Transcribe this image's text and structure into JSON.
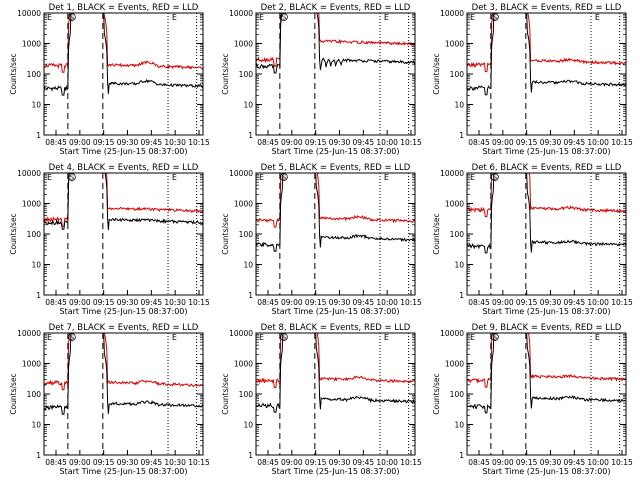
{
  "figure": {
    "start_time_label": "Start Time (25-Jun-15 08:37:00)",
    "ylabel": "Counts/sec",
    "series_colors": {
      "events": "#000000",
      "lld": "#dd0000"
    },
    "x_ticks": [
      "08:45",
      "09:00",
      "09:15",
      "09:30",
      "09:45",
      "10:00",
      "10:15"
    ],
    "x_ticks_alt": [
      "08:45",
      "09:00",
      "09:15",
      "09:30",
      "09:45",
      "10:30",
      "10:15"
    ],
    "y_ticks": [
      "1",
      "10",
      "100",
      "1000",
      "10000"
    ],
    "markers": {
      "s": "S",
      "e": "E"
    }
  },
  "chart_data": [
    {
      "type": "line",
      "title": "Det 1, BLACK = Events, RED = LLD",
      "xlim": [
        0,
        100
      ],
      "ylim": [
        1,
        10000
      ],
      "yscale": "log",
      "events_base": 34,
      "lld_base": 190,
      "events_after": 50,
      "lld_after": 200,
      "bump": 1.3,
      "variant": "a",
      "xlabel": "Start Time (25-Jun-15 08:37:00)",
      "ylabel": "Counts/sec",
      "x_ticks_alt": true
    },
    {
      "type": "line",
      "title": "Det 2, BLACK = Events, RED = LLD",
      "xlim": [
        0,
        100
      ],
      "ylim": [
        1,
        10000
      ],
      "yscale": "log",
      "events_base": 180,
      "lld_base": 300,
      "events_after": 300,
      "lld_after": 1200,
      "bump": 1.0,
      "variant": "b",
      "xlabel": "Start Time (25-Jun-15 08:37:00)",
      "ylabel": "Counts/sec",
      "x_ticks_alt": false
    },
    {
      "type": "line",
      "title": "Det 3, BLACK = Events, RED = LLD",
      "xlim": [
        0,
        100
      ],
      "ylim": [
        1,
        10000
      ],
      "yscale": "log",
      "events_base": 35,
      "lld_base": 200,
      "events_after": 55,
      "lld_after": 280,
      "bump": 1.15,
      "variant": "a",
      "xlabel": "Start Time (25-Jun-15 08:37:00)",
      "ylabel": "Counts/sec",
      "x_ticks_alt": false
    },
    {
      "type": "line",
      "title": "Det 4, BLACK = Events, RED = LLD",
      "xlim": [
        0,
        100
      ],
      "ylim": [
        1,
        10000
      ],
      "yscale": "log",
      "events_base": 240,
      "lld_base": 300,
      "events_after": 300,
      "lld_after": 700,
      "bump": 1.05,
      "variant": "a",
      "xlabel": "Start Time (25-Jun-15 08:37:00)",
      "ylabel": "Counts/sec",
      "x_ticks_alt": true
    },
    {
      "type": "line",
      "title": "Det 5, BLACK = Events, RED = LLD",
      "xlim": [
        0,
        100
      ],
      "ylim": [
        1,
        10000
      ],
      "yscale": "log",
      "events_base": 45,
      "lld_base": 280,
      "events_after": 80,
      "lld_after": 330,
      "bump": 1.2,
      "variant": "a",
      "xlabel": "Start Time (25-Jun-15 08:37:00)",
      "ylabel": "Counts/sec",
      "x_ticks_alt": false
    },
    {
      "type": "line",
      "title": "Det 6, BLACK = Events, RED = LLD",
      "xlim": [
        0,
        100
      ],
      "ylim": [
        1,
        10000
      ],
      "yscale": "log",
      "events_base": 40,
      "lld_base": 620,
      "events_after": 55,
      "lld_after": 700,
      "bump": 1.15,
      "variant": "a",
      "xlabel": "Start Time (25-Jun-15 08:37:00)",
      "ylabel": "Counts/sec",
      "x_ticks_alt": false
    },
    {
      "type": "line",
      "title": "Det 7, BLACK = Events, RED = LLD",
      "xlim": [
        0,
        100
      ],
      "ylim": [
        1,
        10000
      ],
      "yscale": "log",
      "events_base": 36,
      "lld_base": 230,
      "events_after": 50,
      "lld_after": 240,
      "bump": 1.2,
      "variant": "a",
      "xlabel": "Start Time (25-Jun-15 08:37:00)",
      "ylabel": "Counts/sec",
      "x_ticks_alt": true
    },
    {
      "type": "line",
      "title": "Det 8, BLACK = Events, RED = LLD",
      "xlim": [
        0,
        100
      ],
      "ylim": [
        1,
        10000
      ],
      "yscale": "log",
      "events_base": 42,
      "lld_base": 270,
      "events_after": 70,
      "lld_after": 320,
      "bump": 1.2,
      "variant": "a",
      "xlabel": "Start Time (25-Jun-15 08:37:00)",
      "ylabel": "Counts/sec",
      "x_ticks_alt": false
    },
    {
      "type": "line",
      "title": "Det 9, BLACK = Events, RED = LLD",
      "xlim": [
        0,
        100
      ],
      "ylim": [
        1,
        10000
      ],
      "yscale": "log",
      "events_base": 40,
      "lld_base": 280,
      "events_after": 75,
      "lld_after": 380,
      "bump": 1.15,
      "variant": "a",
      "xlabel": "Start Time (25-Jun-15 08:37:00)",
      "ylabel": "Counts/sec",
      "x_ticks_alt": false
    }
  ]
}
